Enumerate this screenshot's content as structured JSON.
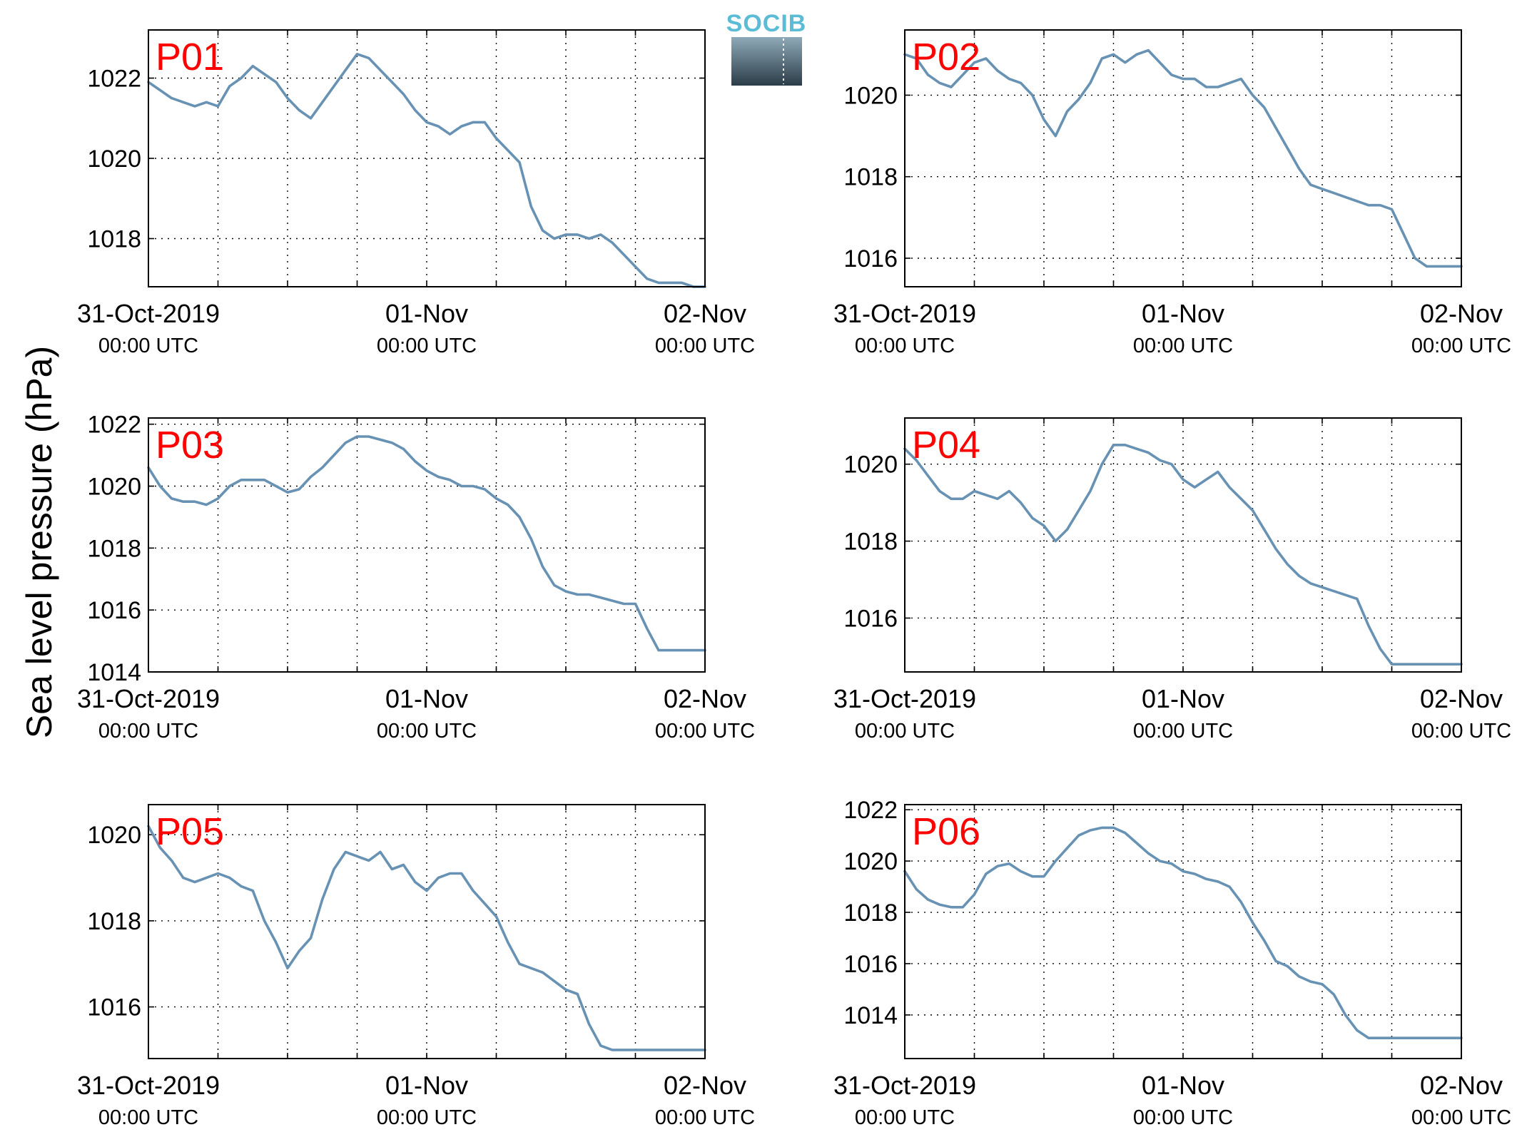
{
  "figure": {
    "ylabel": "Sea level pressure (hPa)",
    "logo_text": "SOCIB",
    "x_tick_labels": [
      {
        "date": "31-Oct-2019",
        "time": "00:00 UTC"
      },
      {
        "date": "01-Nov",
        "time": "00:00 UTC"
      },
      {
        "date": "02-Nov",
        "time": "00:00 UTC"
      }
    ],
    "colors": {
      "line": "#6892b3",
      "panel_label": "#ff0000",
      "grid": "#000000",
      "logo_top": "#5bbcd6",
      "logo_bottom": "#2b3d48"
    }
  },
  "chart_data": [
    {
      "type": "line",
      "title": "P01",
      "xlim_hours": [
        0,
        48
      ],
      "ylim": [
        1016.8,
        1023.2
      ],
      "yticks": [
        1018,
        1020,
        1022
      ],
      "x": [
        0,
        2,
        4,
        5,
        6,
        7,
        8,
        9,
        10,
        11,
        12,
        13,
        14,
        15,
        16,
        17,
        18,
        19,
        20,
        21,
        22,
        23,
        24,
        25,
        26,
        27,
        28,
        29,
        30,
        31,
        32,
        33,
        34,
        35,
        36,
        37,
        38,
        39,
        40,
        41,
        42,
        43,
        44,
        45,
        46,
        47,
        48
      ],
      "values": [
        1021.9,
        1021.5,
        1021.3,
        1021.4,
        1021.3,
        1021.8,
        1022.0,
        1022.3,
        1022.1,
        1021.9,
        1021.5,
        1021.2,
        1021.0,
        1021.4,
        1021.8,
        1022.2,
        1022.6,
        1022.5,
        1022.2,
        1021.9,
        1021.6,
        1021.2,
        1020.9,
        1020.8,
        1020.6,
        1020.8,
        1020.9,
        1020.9,
        1020.5,
        1020.2,
        1019.9,
        1018.8,
        1018.2,
        1018.0,
        1018.1,
        1018.1,
        1018.0,
        1018.1,
        1017.9,
        1017.6,
        1017.3,
        1017.0,
        1016.9,
        1016.9,
        1016.9,
        1016.8,
        1016.8
      ]
    },
    {
      "type": "line",
      "title": "P02",
      "xlim_hours": [
        0,
        48
      ],
      "ylim": [
        1015.3,
        1021.6
      ],
      "yticks": [
        1016,
        1018,
        1020
      ],
      "x": [
        0,
        1,
        2,
        3,
        4,
        5,
        6,
        7,
        8,
        9,
        10,
        11,
        12,
        13,
        14,
        15,
        16,
        17,
        18,
        19,
        20,
        21,
        22,
        23,
        24,
        25,
        26,
        27,
        28,
        29,
        30,
        31,
        32,
        33,
        34,
        35,
        36,
        37,
        38,
        39,
        40,
        41,
        42,
        43,
        44,
        45,
        46,
        47,
        48
      ],
      "values": [
        1021.0,
        1020.9,
        1020.5,
        1020.3,
        1020.2,
        1020.5,
        1020.8,
        1020.9,
        1020.6,
        1020.4,
        1020.3,
        1020.0,
        1019.4,
        1019.0,
        1019.6,
        1019.9,
        1020.3,
        1020.9,
        1021.0,
        1020.8,
        1021.0,
        1021.1,
        1020.8,
        1020.5,
        1020.4,
        1020.4,
        1020.2,
        1020.2,
        1020.3,
        1020.4,
        1020.0,
        1019.7,
        1019.2,
        1018.7,
        1018.2,
        1017.8,
        1017.7,
        1017.6,
        1017.5,
        1017.4,
        1017.3,
        1017.3,
        1017.2,
        1016.6,
        1016.0,
        1015.8,
        1015.8,
        1015.8,
        1015.8
      ]
    },
    {
      "type": "line",
      "title": "P03",
      "xlim_hours": [
        0,
        48
      ],
      "ylim": [
        1014.0,
        1022.2
      ],
      "yticks": [
        1014,
        1016,
        1018,
        1020,
        1022
      ],
      "x": [
        0,
        1,
        2,
        3,
        4,
        5,
        6,
        7,
        8,
        9,
        10,
        11,
        12,
        13,
        14,
        15,
        16,
        17,
        18,
        19,
        20,
        21,
        22,
        23,
        24,
        25,
        26,
        27,
        28,
        29,
        30,
        31,
        32,
        33,
        34,
        35,
        36,
        37,
        38,
        39,
        40,
        41,
        42,
        43,
        44,
        45,
        46,
        47,
        48
      ],
      "values": [
        1020.6,
        1020.0,
        1019.6,
        1019.5,
        1019.5,
        1019.4,
        1019.6,
        1020.0,
        1020.2,
        1020.2,
        1020.2,
        1020.0,
        1019.8,
        1019.9,
        1020.3,
        1020.6,
        1021.0,
        1021.4,
        1021.6,
        1021.6,
        1021.5,
        1021.4,
        1021.2,
        1020.8,
        1020.5,
        1020.3,
        1020.2,
        1020.0,
        1020.0,
        1019.9,
        1019.6,
        1019.4,
        1019.0,
        1018.3,
        1017.4,
        1016.8,
        1016.6,
        1016.5,
        1016.5,
        1016.4,
        1016.3,
        1016.2,
        1016.2,
        1015.4,
        1014.7,
        1014.7,
        1014.7,
        1014.7,
        1014.7
      ]
    },
    {
      "type": "line",
      "title": "P04",
      "xlim_hours": [
        0,
        48
      ],
      "ylim": [
        1014.6,
        1021.2
      ],
      "yticks": [
        1016,
        1018,
        1020
      ],
      "x": [
        0,
        1,
        2,
        3,
        4,
        5,
        6,
        7,
        8,
        9,
        10,
        11,
        12,
        13,
        14,
        15,
        16,
        17,
        18,
        19,
        20,
        21,
        22,
        23,
        24,
        25,
        26,
        27,
        28,
        29,
        30,
        31,
        32,
        33,
        34,
        35,
        36,
        37,
        38,
        39,
        40,
        41,
        42,
        43,
        44,
        45,
        46,
        47,
        48
      ],
      "values": [
        1020.4,
        1020.1,
        1019.7,
        1019.3,
        1019.1,
        1019.1,
        1019.3,
        1019.2,
        1019.1,
        1019.3,
        1019.0,
        1018.6,
        1018.4,
        1018.0,
        1018.3,
        1018.8,
        1019.3,
        1020.0,
        1020.5,
        1020.5,
        1020.4,
        1020.3,
        1020.1,
        1020.0,
        1019.6,
        1019.4,
        1019.6,
        1019.8,
        1019.4,
        1019.1,
        1018.8,
        1018.3,
        1017.8,
        1017.4,
        1017.1,
        1016.9,
        1016.8,
        1016.7,
        1016.6,
        1016.5,
        1015.8,
        1015.2,
        1014.8,
        1014.8,
        1014.8,
        1014.8,
        1014.8,
        1014.8,
        1014.8
      ]
    },
    {
      "type": "line",
      "title": "P05",
      "xlim_hours": [
        0,
        48
      ],
      "ylim": [
        1014.8,
        1020.7
      ],
      "yticks": [
        1016,
        1018,
        1020
      ],
      "x": [
        0,
        1,
        2,
        3,
        4,
        5,
        6,
        7,
        8,
        9,
        10,
        11,
        12,
        13,
        14,
        15,
        16,
        17,
        18,
        19,
        20,
        21,
        22,
        23,
        24,
        25,
        26,
        27,
        28,
        29,
        30,
        31,
        32,
        33,
        34,
        35,
        36,
        37,
        38,
        39,
        40,
        41,
        42,
        43,
        44,
        45,
        46,
        47,
        48
      ],
      "values": [
        1020.2,
        1019.7,
        1019.4,
        1019.0,
        1018.9,
        1019.0,
        1019.1,
        1019.0,
        1018.8,
        1018.7,
        1018.0,
        1017.5,
        1016.9,
        1017.3,
        1017.6,
        1018.5,
        1019.2,
        1019.6,
        1019.5,
        1019.4,
        1019.6,
        1019.2,
        1019.3,
        1018.9,
        1018.7,
        1019.0,
        1019.1,
        1019.1,
        1018.7,
        1018.4,
        1018.1,
        1017.5,
        1017.0,
        1016.9,
        1016.8,
        1016.6,
        1016.4,
        1016.3,
        1015.6,
        1015.1,
        1015.0,
        1015.0,
        1015.0,
        1015.0,
        1015.0,
        1015.0,
        1015.0,
        1015.0,
        1015.0
      ]
    },
    {
      "type": "line",
      "title": "P06",
      "xlim_hours": [
        0,
        48
      ],
      "ylim": [
        1012.3,
        1022.2
      ],
      "yticks": [
        1014,
        1016,
        1018,
        1020,
        1022
      ],
      "x": [
        0,
        1,
        2,
        3,
        4,
        5,
        6,
        7,
        8,
        9,
        10,
        11,
        12,
        13,
        14,
        15,
        16,
        17,
        18,
        19,
        20,
        21,
        22,
        23,
        24,
        25,
        26,
        27,
        28,
        29,
        30,
        31,
        32,
        33,
        34,
        35,
        36,
        37,
        38,
        39,
        40,
        41,
        42,
        43,
        44,
        45,
        46,
        47,
        48
      ],
      "values": [
        1019.6,
        1018.9,
        1018.5,
        1018.3,
        1018.2,
        1018.2,
        1018.7,
        1019.5,
        1019.8,
        1019.9,
        1019.6,
        1019.4,
        1019.4,
        1020.0,
        1020.5,
        1021.0,
        1021.2,
        1021.3,
        1021.3,
        1021.1,
        1020.7,
        1020.3,
        1020.0,
        1019.9,
        1019.6,
        1019.5,
        1019.3,
        1019.2,
        1019.0,
        1018.4,
        1017.6,
        1016.9,
        1016.1,
        1015.9,
        1015.5,
        1015.3,
        1015.2,
        1014.8,
        1014.0,
        1013.4,
        1013.1,
        1013.1,
        1013.1,
        1013.1,
        1013.1,
        1013.1,
        1013.1,
        1013.1,
        1013.1
      ]
    }
  ]
}
